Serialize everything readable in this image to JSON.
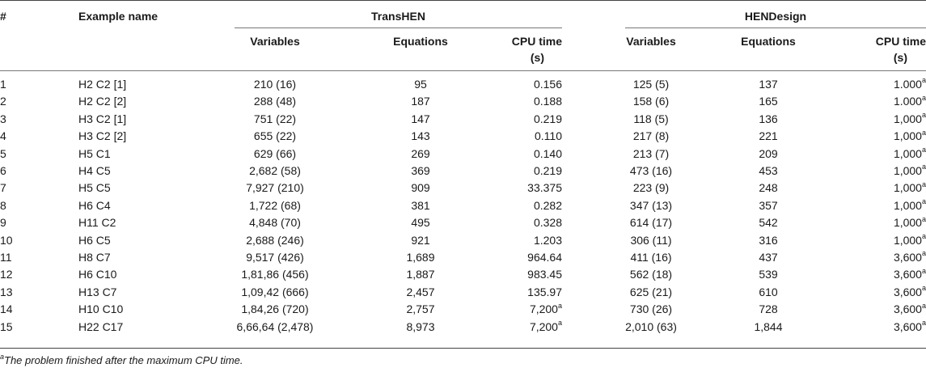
{
  "headers": {
    "num": "#",
    "example": "Example name",
    "group1": "TransHEN",
    "group2": "HENDesign",
    "variables": "Variables",
    "equations": "Equations",
    "cpu_line1": "CPU time",
    "cpu_line2": "(s)"
  },
  "rows": [
    {
      "n": "1",
      "name": "H2 C2 [1]",
      "tv": "210 (16)",
      "te": "95",
      "tc": "0.156",
      "tca": "",
      "hv": "125 (5)",
      "he": "137",
      "hc": "1.000",
      "hca": "a"
    },
    {
      "n": "2",
      "name": "H2 C2 [2]",
      "tv": "288 (48)",
      "te": "187",
      "tc": "0.188",
      "tca": "",
      "hv": "158 (6)",
      "he": "165",
      "hc": "1.000",
      "hca": "a"
    },
    {
      "n": "3",
      "name": "H3 C2 [1]",
      "tv": "751 (22)",
      "te": "147",
      "tc": "0.219",
      "tca": "",
      "hv": "118 (5)",
      "he": "136",
      "hc": "1,000",
      "hca": "a"
    },
    {
      "n": "4",
      "name": "H3 C2 [2]",
      "tv": "655 (22)",
      "te": "143",
      "tc": "0.110",
      "tca": "",
      "hv": "217 (8)",
      "he": "221",
      "hc": "1,000",
      "hca": "a"
    },
    {
      "n": "5",
      "name": "H5 C1",
      "tv": "629 (66)",
      "te": "269",
      "tc": "0.140",
      "tca": "",
      "hv": "213 (7)",
      "he": "209",
      "hc": "1,000",
      "hca": "a"
    },
    {
      "n": "6",
      "name": "H4 C5",
      "tv": "2,682 (58)",
      "te": "369",
      "tc": "0.219",
      "tca": "",
      "hv": "473 (16)",
      "he": "453",
      "hc": "1,000",
      "hca": "a"
    },
    {
      "n": "7",
      "name": "H5 C5",
      "tv": "7,927 (210)",
      "te": "909",
      "tc": "33.375",
      "tca": "",
      "hv": "223 (9)",
      "he": "248",
      "hc": "1,000",
      "hca": "a"
    },
    {
      "n": "8",
      "name": "H6 C4",
      "tv": "1,722 (68)",
      "te": "381",
      "tc": "0.282",
      "tca": "",
      "hv": "347 (13)",
      "he": "357",
      "hc": "1,000",
      "hca": "a"
    },
    {
      "n": "9",
      "name": "H11 C2",
      "tv": "4,848 (70)",
      "te": "495",
      "tc": "0.328",
      "tca": "",
      "hv": "614 (17)",
      "he": "542",
      "hc": "1,000",
      "hca": "a"
    },
    {
      "n": "10",
      "name": "H6 C5",
      "tv": "2,688 (246)",
      "te": "921",
      "tc": "1.203",
      "tca": "",
      "hv": "306 (11)",
      "he": "316",
      "hc": "1,000",
      "hca": "a"
    },
    {
      "n": "11",
      "name": "H8 C7",
      "tv": "9,517 (426)",
      "te": "1,689",
      "tc": "964.64",
      "tca": "",
      "hv": "411 (16)",
      "he": "437",
      "hc": "3,600",
      "hca": "a"
    },
    {
      "n": "12",
      "name": "H6 C10",
      "tv": "1,81,86 (456)",
      "te": "1,887",
      "tc": "983.45",
      "tca": "",
      "hv": "562 (18)",
      "he": "539",
      "hc": "3,600",
      "hca": "a"
    },
    {
      "n": "13",
      "name": "H13 C7",
      "tv": "1,09,42 (666)",
      "te": "2,457",
      "tc": "135.97",
      "tca": "",
      "hv": "625 (21)",
      "he": "610",
      "hc": "3,600",
      "hca": "a"
    },
    {
      "n": "14",
      "name": "H10 C10",
      "tv": "1,84,26 (720)",
      "te": "2,757",
      "tc": "7,200",
      "tca": "a",
      "hv": "730 (26)",
      "he": "728",
      "hc": "3,600",
      "hca": "a"
    },
    {
      "n": "15",
      "name": "H22 C17",
      "tv": "6,66,64 (2,478)",
      "te": "8,973",
      "tc": "7,200",
      "tca": "a",
      "hv": "2,010 (63)",
      "he": "1,844",
      "hc": "3,600",
      "hca": "a"
    }
  ],
  "footnote": {
    "mark": "a",
    "text": "The problem finished after the maximum CPU time."
  }
}
